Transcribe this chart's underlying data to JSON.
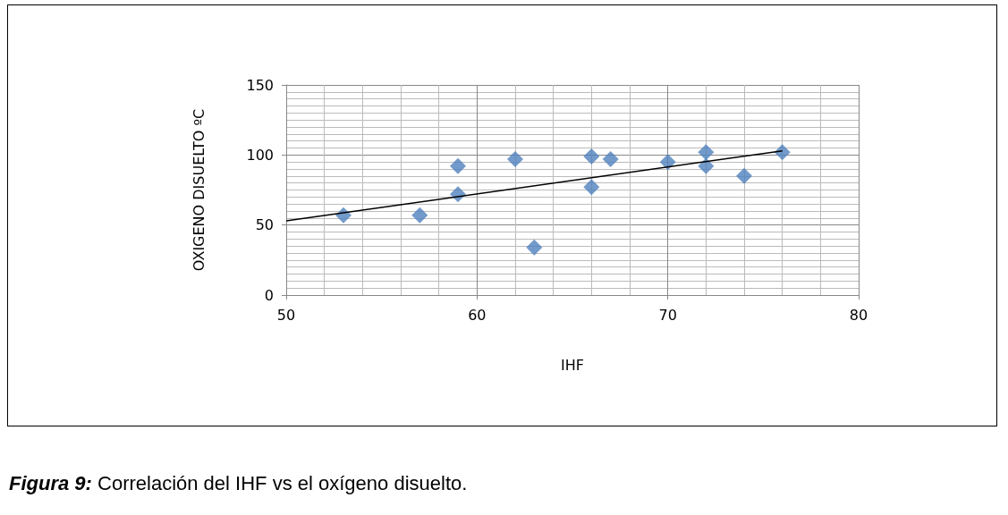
{
  "chart_data": {
    "type": "scatter",
    "xlabel": "IHF",
    "ylabel": "OXIGENO DISUELTO ºC",
    "annotations": [
      "Figura 9: Correlación del IHF vs el oxígeno disuelto."
    ],
    "xlim": [
      50,
      80
    ],
    "xticks": [
      50,
      60,
      70,
      80
    ],
    "ylim": [
      0,
      150
    ],
    "yticks": [
      0,
      50,
      100,
      150
    ],
    "grid": true,
    "marker": "diamond",
    "series": [
      {
        "color": "#4f81bd",
        "x": [
          53,
          57,
          59,
          59,
          62,
          63,
          66,
          66,
          67,
          70,
          72,
          72,
          74,
          76
        ],
        "values": [
          57,
          57,
          92,
          72,
          97,
          34,
          99,
          77,
          97,
          95,
          102,
          92,
          85,
          102
        ]
      },
      {
        "type": "line",
        "color": "#000000",
        "marker": "none",
        "x": [
          50,
          76
        ],
        "values": [
          53,
          103
        ]
      }
    ]
  }
}
